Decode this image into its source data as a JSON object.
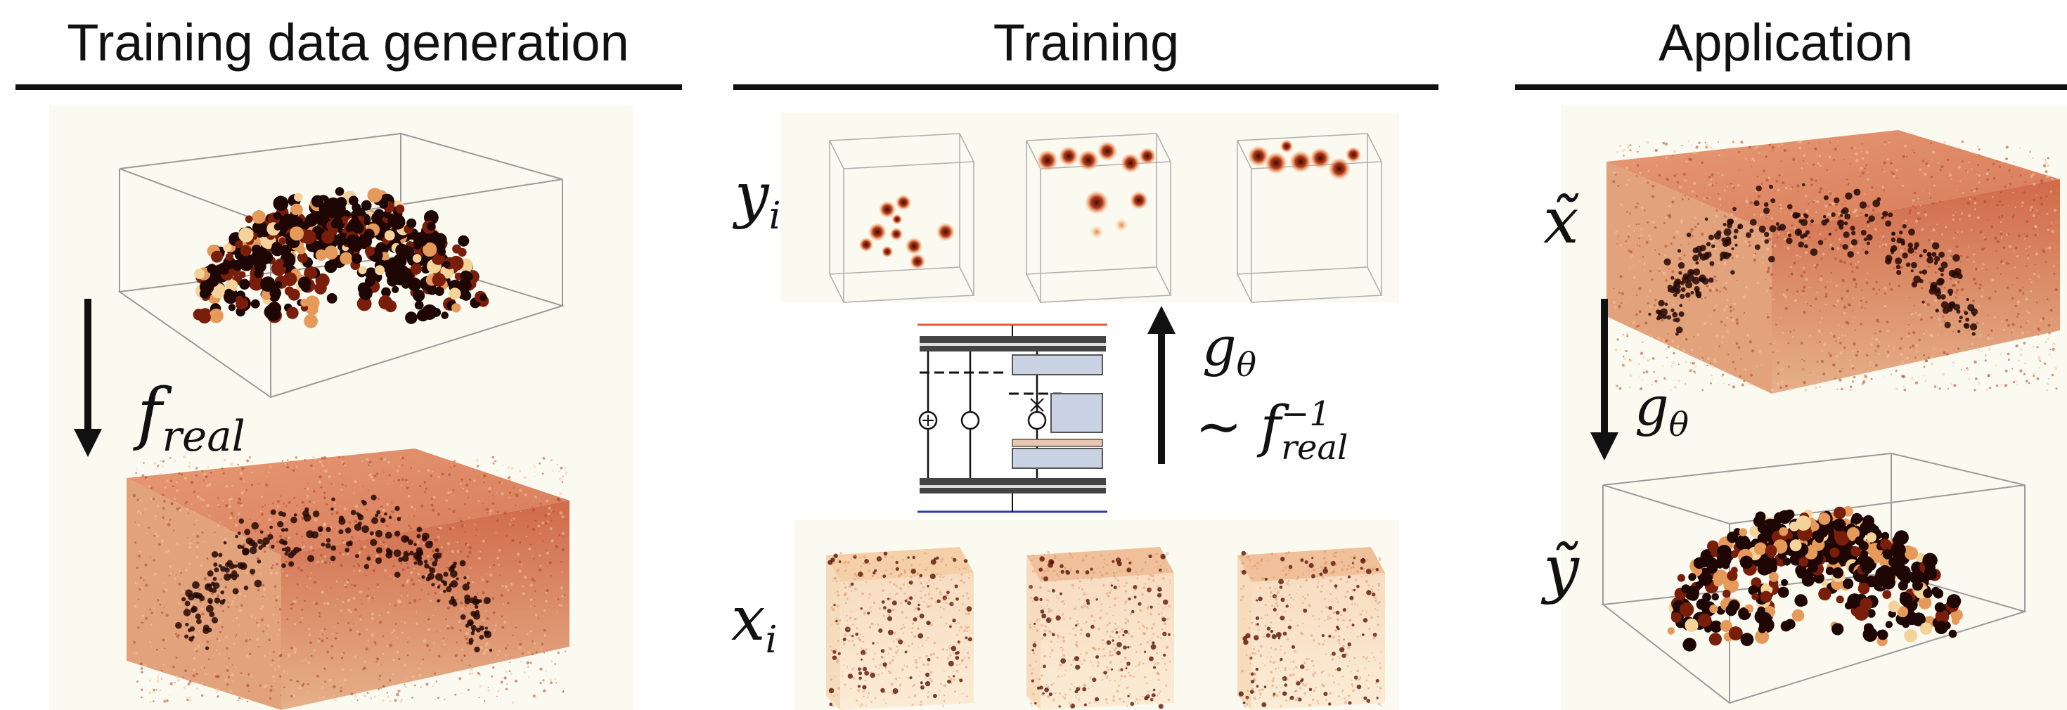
{
  "sections": [
    {
      "title": "Training data generation"
    },
    {
      "title": "Training"
    },
    {
      "title": "Application"
    }
  ],
  "labels": {
    "f_real": {
      "base": "f",
      "sub": "real"
    },
    "y_i": {
      "base": "y",
      "sub": "i"
    },
    "x_i": {
      "base": "x",
      "sub": "i"
    },
    "g_theta_training": {
      "base": "g",
      "sub": "θ"
    },
    "inverse": {
      "prefix": "∼ ",
      "base": "f",
      "sup": "−1",
      "sub": "real"
    },
    "x_tilde": {
      "base": "x̃"
    },
    "g_theta_application": {
      "base": "g",
      "sub": "θ"
    },
    "y_tilde": {
      "base": "ỹ"
    }
  },
  "colors": {
    "text": "#111111",
    "rule": "#111111",
    "box_edge": "#9a9a9a",
    "volume_face": "#dd8060",
    "volume_dark": "#2a0a05",
    "background_tint": "#fbfaf0",
    "net_top_line": "#e05a3a",
    "net_bottom_line": "#2a3ab0",
    "net_block": "#c9d3e3",
    "net_block_accent": "#e8c8b0"
  }
}
